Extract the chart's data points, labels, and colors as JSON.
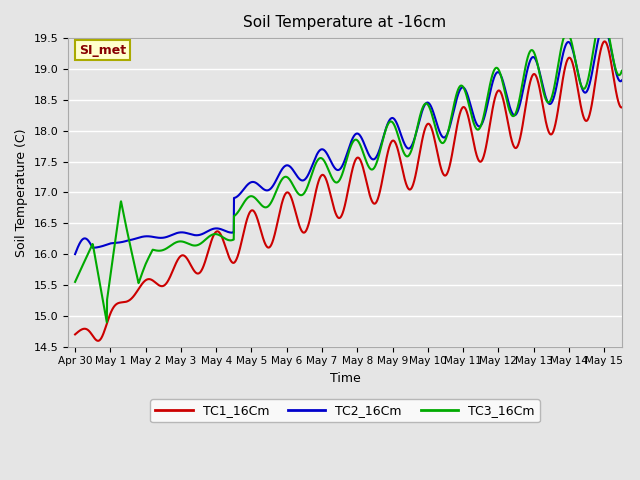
{
  "title": "Soil Temperature at -16cm",
  "xlabel": "Time",
  "ylabel": "Soil Temperature (C)",
  "xlim_days": [
    -0.2,
    15.5
  ],
  "ylim": [
    14.5,
    19.5
  ],
  "yticks": [
    14.5,
    15.0,
    15.5,
    16.0,
    16.5,
    17.0,
    17.5,
    18.0,
    18.5,
    19.0,
    19.5
  ],
  "xtick_labels": [
    "Apr 30",
    "May 1",
    "May 2",
    "May 3",
    "May 4",
    "May 5",
    "May 6",
    "May 7",
    "May 8",
    "May 9",
    "May 10",
    "May 11",
    "May 12",
    "May 13",
    "May 14",
    "May 15"
  ],
  "xtick_positions": [
    0,
    1,
    2,
    3,
    4,
    5,
    6,
    7,
    8,
    9,
    10,
    11,
    12,
    13,
    14,
    15
  ],
  "background_color": "#e5e5e5",
  "plot_bg_color": "#e5e5e5",
  "grid_color": "#ffffff",
  "line_colors": [
    "#cc0000",
    "#0000cc",
    "#00aa00"
  ],
  "line_labels": [
    "TC1_16Cm",
    "TC2_16Cm",
    "TC3_16Cm"
  ],
  "legend_box_color": "#ffffcc",
  "legend_box_edge": "#aaaa00",
  "annotation_text": "SI_met",
  "annotation_color": "#880000",
  "figsize": [
    6.4,
    4.8
  ],
  "dpi": 100
}
